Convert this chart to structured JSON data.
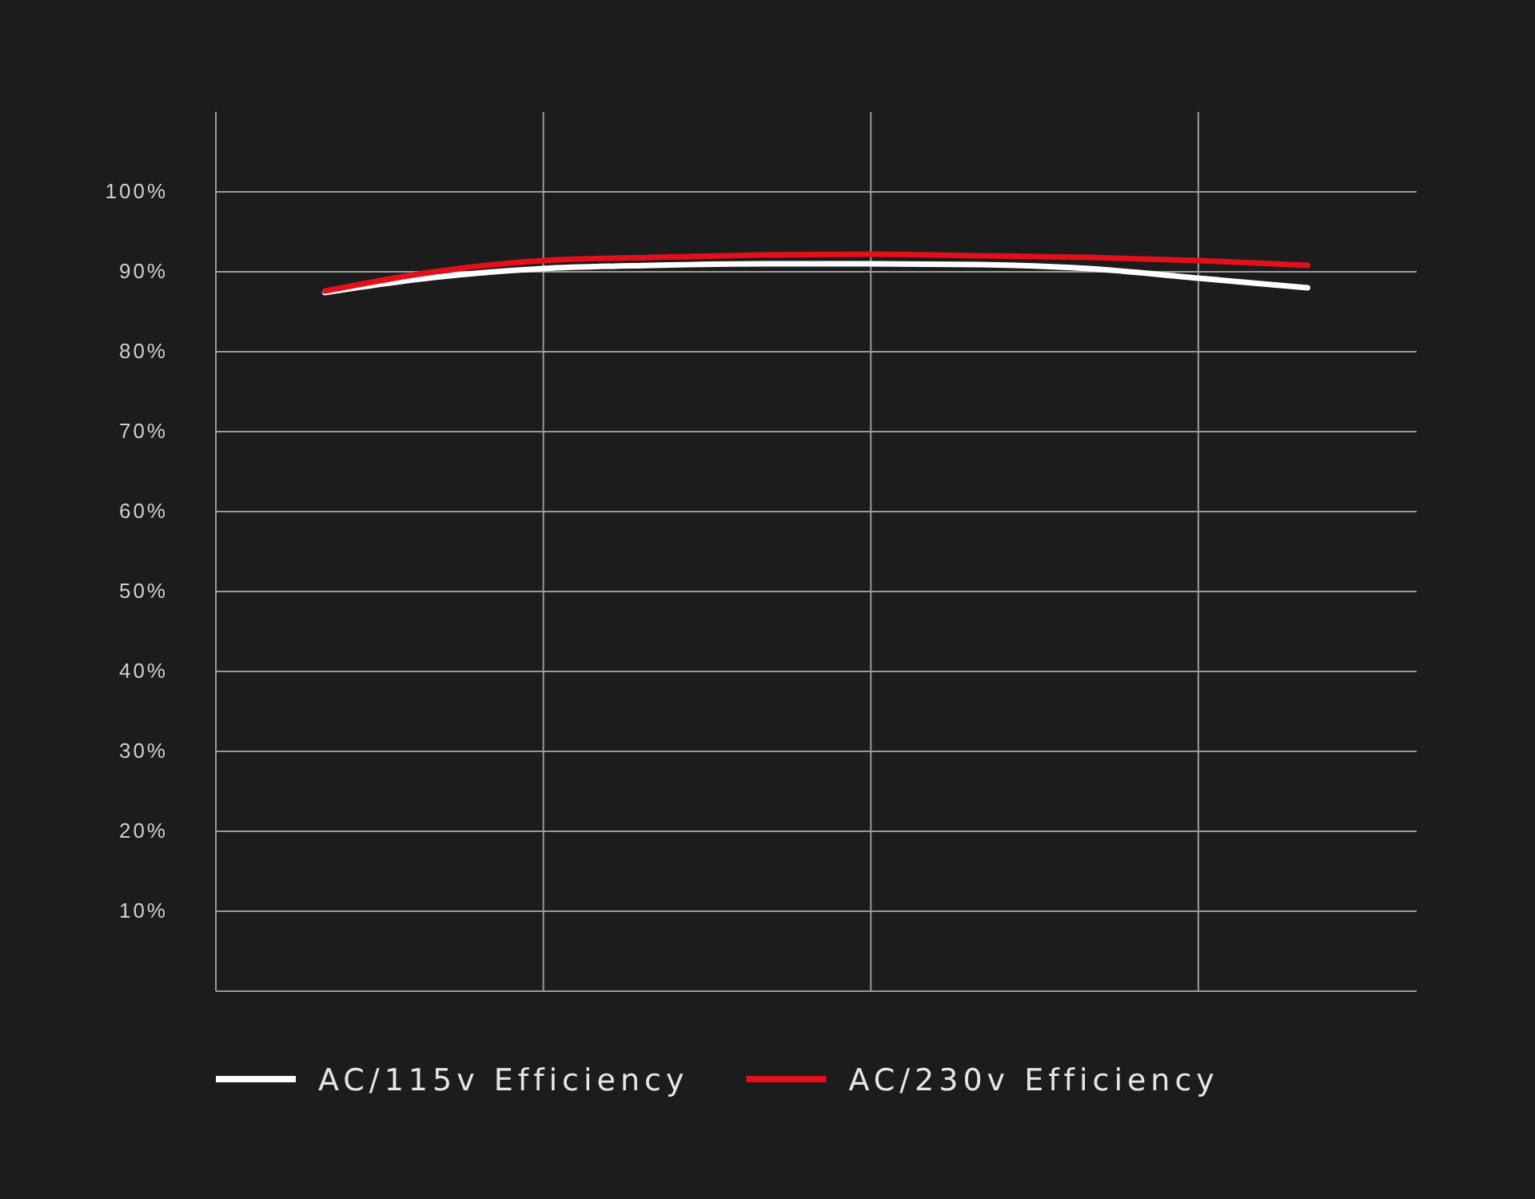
{
  "chart_data": {
    "type": "line",
    "categories": [
      null,
      null,
      null,
      null,
      null,
      null,
      null,
      null,
      null,
      null,
      null,
      null
    ],
    "ylim": [
      0,
      110
    ],
    "yticks": [
      {
        "value": 10,
        "label": "10%"
      },
      {
        "value": 20,
        "label": "20%"
      },
      {
        "value": 30,
        "label": "30%"
      },
      {
        "value": 40,
        "label": "40%"
      },
      {
        "value": 50,
        "label": "50%"
      },
      {
        "value": 60,
        "label": "60%"
      },
      {
        "value": 70,
        "label": "70%"
      },
      {
        "value": 80,
        "label": "80%"
      },
      {
        "value": 90,
        "label": "90%"
      },
      {
        "value": 100,
        "label": "100%"
      }
    ],
    "grid": true,
    "legend": "bottom",
    "line_style": "solid",
    "series": [
      {
        "name": "AC/115v Efficiency",
        "color": "#ffffff",
        "values": [
          null,
          87.4,
          89.3,
          90.4,
          90.8,
          91,
          91,
          90.9,
          90.4,
          89.2,
          88,
          null
        ]
      },
      {
        "name": "AC/230v Efficiency",
        "color": "#e3101b",
        "values": [
          null,
          87.6,
          90.0,
          91.4,
          91.8,
          92.1,
          92.2,
          92.0,
          91.8,
          91.4,
          90.8,
          null
        ]
      }
    ]
  }
}
